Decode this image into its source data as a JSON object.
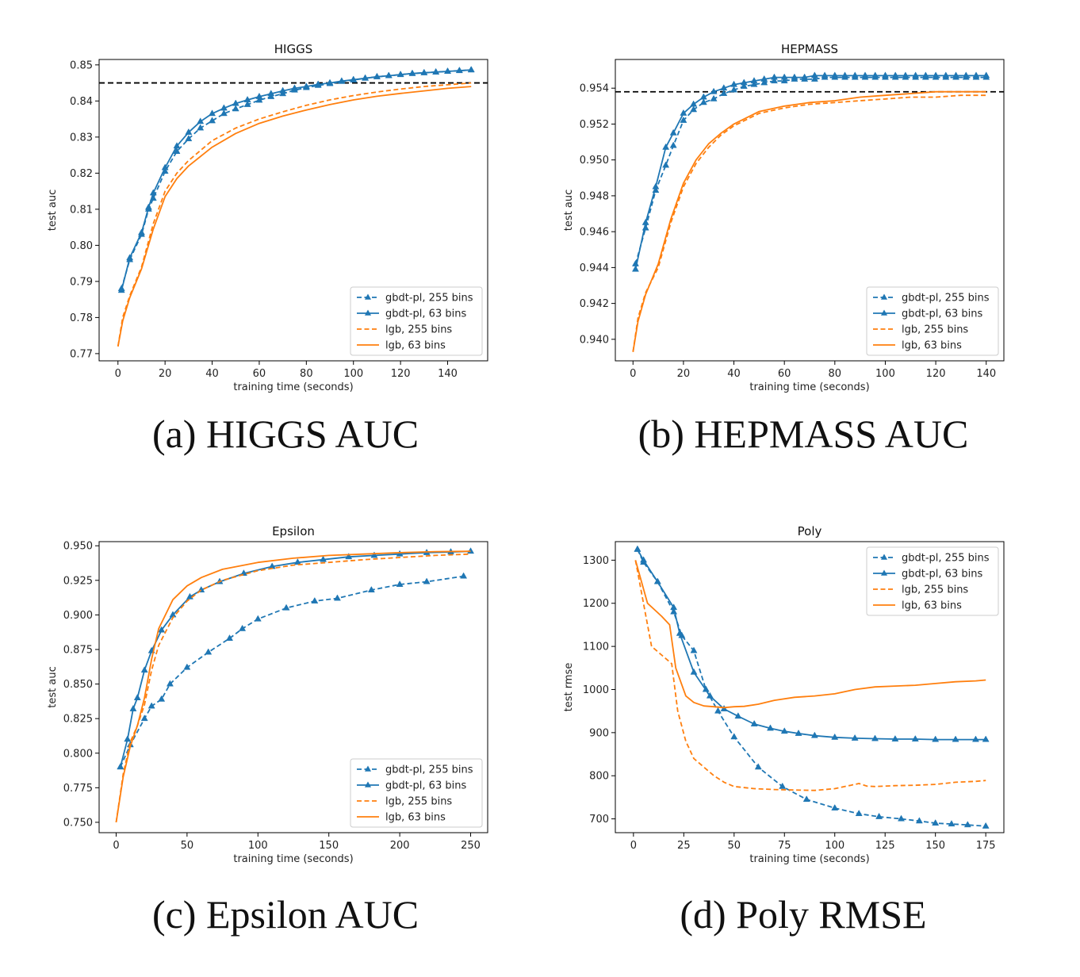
{
  "colors": {
    "blue": "#1f77b4",
    "orange": "#ff7f0e",
    "reference": "#000000"
  },
  "captions": [
    "(a) HIGGS AUC",
    "(b) HEPMASS AUC",
    "(c) Epsilon AUC",
    "(d) Poly RMSE"
  ],
  "chart_data": [
    {
      "type": "line",
      "title": "HIGGS",
      "xlabel": "training time (seconds)",
      "ylabel": "test auc",
      "xlim": [
        -8,
        157
      ],
      "ylim": [
        0.768,
        0.8515
      ],
      "xticks": [
        0,
        20,
        40,
        60,
        80,
        100,
        120,
        140
      ],
      "yticks": [
        0.77,
        0.78,
        0.79,
        0.8,
        0.81,
        0.82,
        0.83,
        0.84,
        0.85
      ],
      "ytick_labels": [
        "0.77",
        "0.78",
        "0.79",
        "0.80",
        "0.81",
        "0.82",
        "0.83",
        "0.84",
        "0.85"
      ],
      "reference_line": 0.845,
      "legend_position": "lower-right",
      "series": [
        {
          "name": "gbdt-pl, 255 bins",
          "color": "blue",
          "dashed": true,
          "markers": true,
          "x": [
            1.5,
            5,
            10,
            13,
            15,
            20,
            25,
            30,
            35,
            40,
            45,
            50,
            55,
            60,
            65,
            70,
            75,
            80,
            85,
            90,
            95,
            100,
            105,
            110,
            115,
            120,
            125,
            130,
            135,
            140,
            145,
            150
          ],
          "y": [
            0.788,
            0.796,
            0.803,
            0.81,
            0.813,
            0.8205,
            0.826,
            0.8295,
            0.8325,
            0.8345,
            0.8365,
            0.8378,
            0.839,
            0.8402,
            0.8412,
            0.842,
            0.843,
            0.8437,
            0.8443,
            0.8448,
            0.8454,
            0.8458,
            0.8463,
            0.8467,
            0.847,
            0.8473,
            0.8476,
            0.8478,
            0.848,
            0.8482,
            0.8484,
            0.8486
          ]
        },
        {
          "name": "gbdt-pl, 63 bins",
          "color": "blue",
          "dashed": false,
          "markers": true,
          "x": [
            1.5,
            5,
            10,
            13,
            15,
            20,
            25,
            30,
            35,
            40,
            45,
            50,
            55,
            60,
            65,
            70,
            75,
            80,
            85,
            90,
            95,
            100,
            105,
            110,
            115,
            120,
            125,
            130,
            135,
            140,
            145,
            150
          ],
          "y": [
            0.7875,
            0.7965,
            0.8035,
            0.8105,
            0.8145,
            0.8215,
            0.8275,
            0.8313,
            0.8343,
            0.8365,
            0.838,
            0.8393,
            0.8403,
            0.8412,
            0.842,
            0.8428,
            0.8435,
            0.844,
            0.8446,
            0.845,
            0.8455,
            0.8459,
            0.8463,
            0.8467,
            0.847,
            0.8473,
            0.8476,
            0.8478,
            0.848,
            0.8482,
            0.8484,
            0.8486
          ]
        },
        {
          "name": "lgb, 255 bins",
          "color": "orange",
          "dashed": true,
          "markers": false,
          "x": [
            0,
            2,
            5,
            10,
            15,
            20,
            25,
            30,
            40,
            50,
            60,
            70,
            80,
            90,
            100,
            110,
            120,
            130,
            140,
            150
          ],
          "y": [
            0.772,
            0.78,
            0.786,
            0.794,
            0.806,
            0.815,
            0.82,
            0.8235,
            0.829,
            0.8325,
            0.835,
            0.837,
            0.8388,
            0.8403,
            0.8415,
            0.8425,
            0.8433,
            0.844,
            0.8445,
            0.845
          ]
        },
        {
          "name": "lgb, 63 bins",
          "color": "orange",
          "dashed": false,
          "markers": false,
          "x": [
            0,
            2,
            5,
            10,
            15,
            20,
            25,
            30,
            40,
            50,
            60,
            70,
            80,
            90,
            100,
            110,
            120,
            130,
            140,
            150
          ],
          "y": [
            0.772,
            0.779,
            0.7855,
            0.7935,
            0.8045,
            0.8135,
            0.8185,
            0.822,
            0.8272,
            0.831,
            0.8338,
            0.8358,
            0.8375,
            0.839,
            0.8403,
            0.8413,
            0.8421,
            0.8428,
            0.8435,
            0.844
          ]
        }
      ]
    },
    {
      "type": "line",
      "title": "HEPMASS",
      "xlabel": "training time (seconds)",
      "ylabel": "test auc",
      "xlim": [
        -7,
        147
      ],
      "ylim": [
        0.9388,
        0.9556
      ],
      "xticks": [
        0,
        20,
        40,
        60,
        80,
        100,
        120,
        140
      ],
      "yticks": [
        0.94,
        0.942,
        0.944,
        0.946,
        0.948,
        0.95,
        0.952,
        0.954
      ],
      "ytick_labels": [
        "0.940",
        "0.942",
        "0.944",
        "0.946",
        "0.948",
        "0.950",
        "0.952",
        "0.954"
      ],
      "reference_line": 0.9538,
      "legend_position": "lower-right",
      "series": [
        {
          "name": "gbdt-pl, 255 bins",
          "color": "blue",
          "dashed": true,
          "markers": true,
          "x": [
            1,
            5,
            9,
            13,
            16,
            20,
            24,
            28,
            32,
            36,
            40,
            44,
            48,
            52,
            56,
            60,
            64,
            68,
            72,
            76,
            80,
            84,
            88,
            92,
            96,
            100,
            104,
            108,
            112,
            116,
            120,
            124,
            128,
            132,
            136,
            140
          ],
          "y": [
            0.9442,
            0.9462,
            0.9483,
            0.9497,
            0.9508,
            0.9522,
            0.9528,
            0.9532,
            0.9534,
            0.9537,
            0.9539,
            0.9541,
            0.9542,
            0.9543,
            0.9544,
            0.9544,
            0.9545,
            0.9545,
            0.9545,
            0.9546,
            0.9546,
            0.9546,
            0.9546,
            0.9546,
            0.9546,
            0.9546,
            0.9546,
            0.9546,
            0.9546,
            0.9546,
            0.9546,
            0.9546,
            0.9546,
            0.9546,
            0.9546,
            0.9546
          ]
        },
        {
          "name": "gbdt-pl, 63 bins",
          "color": "blue",
          "dashed": false,
          "markers": true,
          "x": [
            1,
            5,
            9,
            13,
            16,
            20,
            24,
            28,
            32,
            36,
            40,
            44,
            48,
            52,
            56,
            60,
            64,
            68,
            72,
            76,
            80,
            84,
            88,
            92,
            96,
            100,
            104,
            108,
            112,
            116,
            120,
            124,
            128,
            132,
            136,
            140
          ],
          "y": [
            0.9439,
            0.9465,
            0.9485,
            0.9507,
            0.9515,
            0.9526,
            0.9531,
            0.9535,
            0.9538,
            0.954,
            0.9542,
            0.9543,
            0.9544,
            0.9545,
            0.9546,
            0.9546,
            0.9546,
            0.9546,
            0.9547,
            0.9547,
            0.9547,
            0.9547,
            0.9547,
            0.9547,
            0.9547,
            0.9547,
            0.9547,
            0.9547,
            0.9547,
            0.9547,
            0.9547,
            0.9547,
            0.9547,
            0.9547,
            0.9547,
            0.9547
          ]
        },
        {
          "name": "lgb, 255 bins",
          "color": "orange",
          "dashed": true,
          "markers": false,
          "x": [
            0,
            2,
            5,
            10,
            15,
            20,
            25,
            30,
            35,
            40,
            50,
            60,
            70,
            80,
            90,
            100,
            110,
            120,
            130,
            140
          ],
          "y": [
            0.9393,
            0.9412,
            0.9426,
            0.944,
            0.9465,
            0.9485,
            0.9498,
            0.9507,
            0.9514,
            0.9519,
            0.9526,
            0.9529,
            0.9531,
            0.9532,
            0.9533,
            0.9534,
            0.9535,
            0.9535,
            0.9536,
            0.9536
          ]
        },
        {
          "name": "lgb, 63 bins",
          "color": "orange",
          "dashed": false,
          "markers": false,
          "x": [
            0,
            2,
            5,
            10,
            15,
            20,
            25,
            30,
            35,
            40,
            50,
            60,
            70,
            80,
            90,
            100,
            110,
            120,
            130,
            140
          ],
          "y": [
            0.9393,
            0.941,
            0.9425,
            0.9442,
            0.9467,
            0.9487,
            0.95,
            0.9509,
            0.9515,
            0.952,
            0.9527,
            0.953,
            0.9532,
            0.9533,
            0.9535,
            0.9536,
            0.9537,
            0.9538,
            0.9538,
            0.9538
          ]
        }
      ]
    },
    {
      "type": "line",
      "title": "Epsilon",
      "xlabel": "training time (seconds)",
      "ylabel": "test auc",
      "xlim": [
        -12,
        262
      ],
      "ylim": [
        0.7425,
        0.953
      ],
      "xticks": [
        0,
        50,
        100,
        150,
        200,
        250
      ],
      "yticks": [
        0.75,
        0.775,
        0.8,
        0.825,
        0.85,
        0.875,
        0.9,
        0.925,
        0.95
      ],
      "ytick_labels": [
        "0.750",
        "0.775",
        "0.800",
        "0.825",
        "0.850",
        "0.875",
        "0.900",
        "0.925",
        "0.950"
      ],
      "legend_position": "lower-right",
      "series": [
        {
          "name": "gbdt-pl, 255 bins",
          "color": "blue",
          "dashed": true,
          "markers": true,
          "x": [
            3,
            10,
            20,
            25,
            32,
            38,
            50,
            65,
            80,
            89,
            100,
            120,
            140,
            156,
            180,
            200,
            219,
            245
          ],
          "y": [
            0.79,
            0.806,
            0.825,
            0.834,
            0.839,
            0.85,
            0.862,
            0.873,
            0.883,
            0.89,
            0.897,
            0.905,
            0.91,
            0.912,
            0.918,
            0.922,
            0.924,
            0.928
          ]
        },
        {
          "name": "gbdt-pl, 63 bins",
          "color": "blue",
          "dashed": false,
          "markers": true,
          "x": [
            3,
            8,
            12,
            15,
            20,
            25,
            32,
            40,
            52,
            60,
            73,
            90,
            110,
            128,
            146,
            164,
            182,
            200,
            219,
            236,
            250
          ],
          "y": [
            0.79,
            0.81,
            0.832,
            0.84,
            0.86,
            0.874,
            0.889,
            0.9,
            0.913,
            0.918,
            0.924,
            0.93,
            0.935,
            0.938,
            0.94,
            0.942,
            0.943,
            0.944,
            0.945,
            0.9455,
            0.946
          ]
        },
        {
          "name": "lgb, 255 bins",
          "color": "orange",
          "dashed": true,
          "markers": false,
          "x": [
            0,
            5,
            10,
            15,
            20,
            25,
            30,
            40,
            50,
            60,
            75,
            100,
            125,
            150,
            175,
            200,
            225,
            250
          ],
          "y": [
            0.75,
            0.785,
            0.808,
            0.82,
            0.835,
            0.86,
            0.878,
            0.898,
            0.91,
            0.918,
            0.925,
            0.932,
            0.936,
            0.938,
            0.94,
            0.9415,
            0.943,
            0.944
          ]
        },
        {
          "name": "lgb, 63 bins",
          "color": "orange",
          "dashed": false,
          "markers": false,
          "x": [
            0,
            5,
            10,
            15,
            20,
            25,
            30,
            40,
            50,
            60,
            75,
            100,
            125,
            150,
            175,
            200,
            225,
            250
          ],
          "y": [
            0.75,
            0.783,
            0.805,
            0.82,
            0.84,
            0.868,
            0.89,
            0.911,
            0.921,
            0.927,
            0.933,
            0.938,
            0.941,
            0.943,
            0.944,
            0.945,
            0.9458,
            0.946
          ]
        }
      ]
    },
    {
      "type": "line",
      "title": "Poly",
      "xlabel": "training time (seconds)",
      "ylabel": "test rmse",
      "xlim": [
        -9,
        184
      ],
      "ylim": [
        668,
        1343
      ],
      "xticks": [
        0,
        25,
        50,
        75,
        100,
        125,
        150,
        175
      ],
      "yticks": [
        700,
        800,
        900,
        1000,
        1100,
        1200,
        1300
      ],
      "ytick_labels": [
        "700",
        "800",
        "900",
        "1000",
        "1100",
        "1200",
        "1300"
      ],
      "legend_position": "upper-right",
      "series": [
        {
          "name": "gbdt-pl, 255 bins",
          "color": "blue",
          "dashed": true,
          "markers": true,
          "x": [
            2,
            5,
            12,
            20,
            24,
            30,
            36,
            42,
            50,
            62,
            74,
            86,
            100,
            112,
            122,
            133,
            142,
            150,
            158,
            166,
            175
          ],
          "y": [
            1325,
            1295,
            1250,
            1180,
            1125,
            1090,
            1000,
            950,
            890,
            820,
            775,
            745,
            725,
            712,
            705,
            700,
            695,
            690,
            688,
            686,
            683
          ]
        },
        {
          "name": "gbdt-pl, 63 bins",
          "color": "blue",
          "dashed": false,
          "markers": true,
          "x": [
            2,
            5,
            12,
            20,
            23,
            30,
            38,
            45,
            52,
            60,
            68,
            75,
            82,
            90,
            100,
            110,
            120,
            130,
            140,
            150,
            160,
            170,
            175
          ],
          "y": [
            1325,
            1300,
            1250,
            1190,
            1130,
            1040,
            985,
            955,
            938,
            920,
            910,
            903,
            898,
            893,
            889,
            887,
            886,
            885,
            885,
            884,
            884,
            884,
            884
          ]
        },
        {
          "name": "lgb, 255 bins",
          "color": "orange",
          "dashed": true,
          "markers": false,
          "x": [
            1,
            5,
            9,
            14,
            19,
            22,
            26,
            30,
            35,
            40,
            45,
            50,
            60,
            70,
            80,
            90,
            100,
            108,
            112,
            116,
            120,
            130,
            140,
            150,
            160,
            170,
            175
          ],
          "y": [
            1300,
            1200,
            1100,
            1080,
            1060,
            950,
            880,
            840,
            820,
            800,
            785,
            775,
            770,
            768,
            767,
            766,
            770,
            778,
            782,
            776,
            775,
            777,
            778,
            780,
            785,
            787,
            789
          ]
        },
        {
          "name": "lgb, 63 bins",
          "color": "orange",
          "dashed": false,
          "markers": false,
          "x": [
            1,
            7,
            14,
            18,
            21,
            26,
            30,
            35,
            40,
            45,
            50,
            55,
            62,
            70,
            80,
            90,
            100,
            110,
            120,
            130,
            140,
            150,
            160,
            170,
            175
          ],
          "y": [
            1300,
            1200,
            1170,
            1150,
            1050,
            985,
            970,
            962,
            960,
            958,
            960,
            961,
            966,
            975,
            982,
            985,
            990,
            1000,
            1006,
            1008,
            1010,
            1014,
            1018,
            1020,
            1022
          ]
        }
      ]
    }
  ]
}
